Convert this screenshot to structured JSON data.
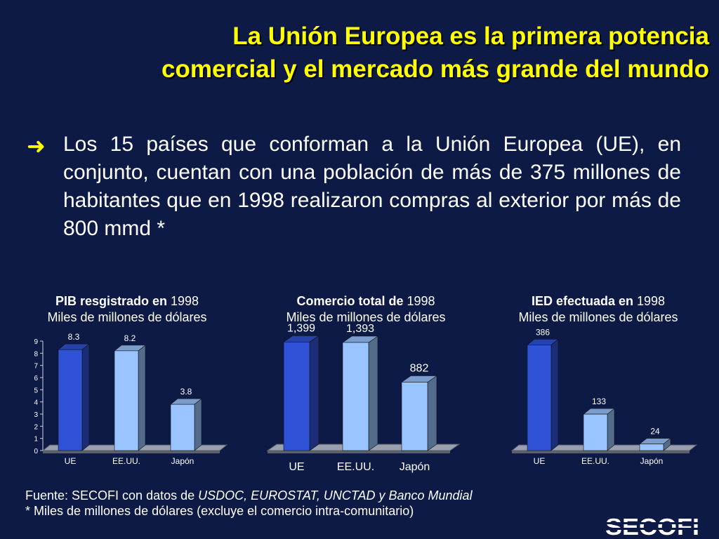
{
  "slide": {
    "title_line1": "La Unión Europea es la primera potencia",
    "title_line2": "comercial y el mercado más grande del mundo",
    "bullet_text": "Los 15 países que conforman a la Unión Europea (UE), en conjunto, cuentan con una población de más de 375 millones de habitantes  que en 1998 realizaron compras al exterior por más de 800 mmd *",
    "footer_prefix": "Fuente: SECOFI con datos de ",
    "footer_sources": "USDOC, EUROSTAT, UNCTAD y Banco Mundial",
    "footer_note": "* Miles de millones de dólares (excluye el comercio intra-comunitario)",
    "logo_text": "SECOFI",
    "colors": {
      "background": "#0d1a45",
      "title": "#ffff00",
      "bar_ue": "#2f52d6",
      "bar_other": "#99c4ff",
      "floor": "#9aa0b0"
    }
  },
  "chart_data": [
    {
      "type": "bar",
      "title_bold": "PIB resgistrado en",
      "title_year": " 1998",
      "subtitle": "Miles de millones de dólares",
      "categories": [
        "UE",
        "EE.UU.",
        "Japón"
      ],
      "values": [
        8.3,
        8.2,
        3.8
      ],
      "labels": [
        "8.3",
        "8.2",
        "3.8"
      ],
      "ylim": [
        0,
        9
      ],
      "yticks": [
        "0",
        "1",
        "2",
        "3",
        "4",
        "5",
        "6",
        "7",
        "8",
        "9"
      ],
      "show_axis": true
    },
    {
      "type": "bar",
      "title_bold": "Comercio total de",
      "title_year": " 1998",
      "subtitle": "Miles de millones de dólares",
      "categories": [
        "UE",
        "EE.UU.",
        "Japón"
      ],
      "values": [
        1399,
        1393,
        882
      ],
      "labels": [
        "1,399",
        "1,393",
        "882"
      ],
      "ylim": [
        0,
        1700
      ],
      "show_axis": false
    },
    {
      "type": "bar",
      "title_bold": "IED efectuada en",
      "title_year": " 1998",
      "subtitle": "Miles de millones de dólares",
      "categories": [
        "UE",
        "EE.UU.",
        "Japón"
      ],
      "values": [
        386,
        133,
        24
      ],
      "labels": [
        "386",
        "133",
        "24"
      ],
      "ylim": [
        0,
        410
      ],
      "show_axis": false
    }
  ]
}
